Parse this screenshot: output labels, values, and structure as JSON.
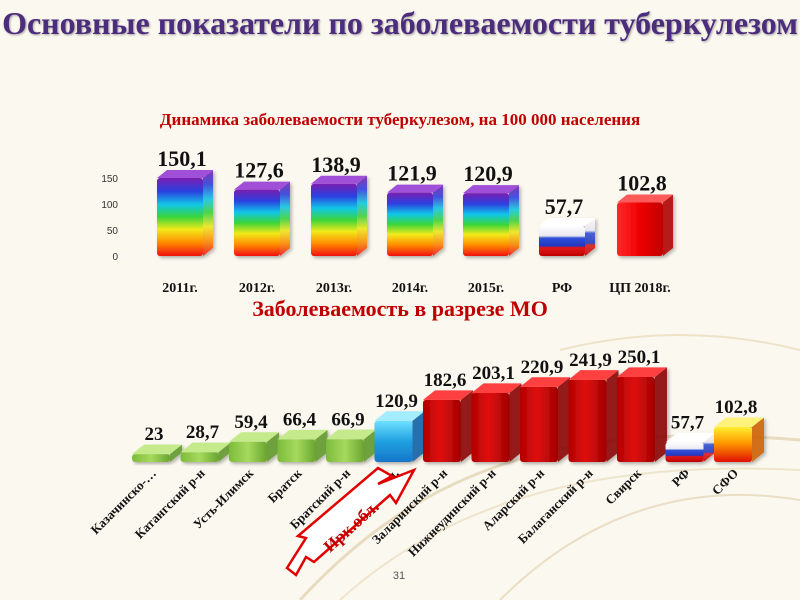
{
  "title": "Основные показатели по заболеваемости туберкулезом",
  "subtitle1": "Динамика заболеваемости туберкулезом, на 100 000 населения",
  "subtitle2": "Заболеваемость в разрезе МО",
  "highlight_label": "Ирк.обл.",
  "page_number": "31",
  "colors": {
    "title": "#4b2c7d",
    "subtitle": "#c00000",
    "district_bar": "#8bc34a",
    "high_bar": "#c00000",
    "oblast_bar": "#2aa8e0",
    "arrow_outline": "#e00000"
  },
  "chart_data": [
    {
      "type": "bar",
      "categories": [
        "2011г.",
        "2012г.",
        "2013г.",
        "2014г.",
        "2015г.",
        "РФ",
        "ЦП 2018г."
      ],
      "values": [
        150.1,
        127.6,
        138.9,
        121.9,
        120.9,
        57.7,
        102.8
      ],
      "value_labels": [
        "150,1",
        "127,6",
        "138,9",
        "121,9",
        "120,9",
        "57,7",
        "102,8"
      ],
      "bar_styles": [
        "rainbow",
        "rainbow",
        "rainbow",
        "rainbow",
        "rainbow",
        "tricolor",
        "red"
      ],
      "title": "Динамика заболеваемости туберкулезом, на 100 000 населения",
      "ylim": [
        0,
        150
      ],
      "yticks": [
        "0",
        "50",
        "100",
        "150"
      ]
    },
    {
      "type": "bar",
      "categories": [
        "Казачинско-…",
        "Катангский р-н",
        "Усть-Илимск",
        "Братск",
        "Братский р-н",
        "Ирк.обл.",
        "Заларинский р-н",
        "Нижнеудинский р-н",
        "Аларский р-н",
        "Балаганский р-н",
        "Свирск",
        "РФ",
        "СФО"
      ],
      "values": [
        23,
        28.7,
        59.4,
        66.4,
        66.9,
        120.9,
        182.6,
        203.1,
        220.9,
        241.9,
        250.1,
        57.7,
        102.8
      ],
      "value_labels": [
        "23",
        "28,7",
        "59,4",
        "66,4",
        "66,9",
        "120,9",
        "182,6",
        "203,1",
        "220,9",
        "241,9",
        "250,1",
        "57,7",
        "102,8"
      ],
      "bar_styles": [
        "green",
        "green",
        "green",
        "green",
        "green",
        "blue",
        "red",
        "red",
        "red",
        "red",
        "red",
        "tricolor",
        "fire"
      ],
      "title": "Заболеваемость в разрезе МО"
    }
  ]
}
